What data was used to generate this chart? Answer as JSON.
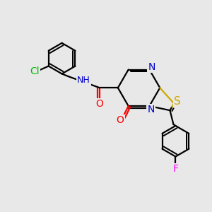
{
  "bg_color": "#e8e8e8",
  "atom_colors": {
    "C": "#000000",
    "N": "#0000cc",
    "O": "#ff0000",
    "S": "#ccaa00",
    "Cl": "#00bb00",
    "F": "#ff00ff",
    "H": "#000000"
  },
  "bond_color": "#000000",
  "bond_width": 1.6,
  "font_size": 9
}
